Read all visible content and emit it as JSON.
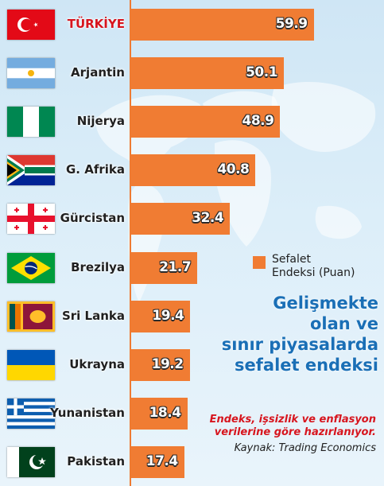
{
  "chart_data": {
    "type": "bar",
    "orientation": "horizontal",
    "title": "Gelişmekte olan ve sınır piyasalarda sefalet endeksi",
    "subtitle": "Endeks, işsizlik ve enflasyon verilerine göre hazırlanıyor.",
    "source": "Kaynak: Trading Economics",
    "legend": {
      "label": "Sefalet Endeksi (Puan)",
      "placement": "right-middle",
      "color": "#f07c33"
    },
    "highlight_category": "TÜRKİYE",
    "categories": [
      "TÜRKİYE",
      "Arjantin",
      "Nijerya",
      "G. Afrika",
      "Gürcistan",
      "Brezilya",
      "Sri Lanka",
      "Ukrayna",
      "Yunanistan",
      "Pakistan"
    ],
    "value_labels": [
      "59.9",
      "50.1",
      "48.9",
      "40.8",
      "32.4",
      "21.7",
      "19.4",
      "19.2",
      "18.4",
      "17.4"
    ],
    "values": [
      59.9,
      50.1,
      48.9,
      40.8,
      32.4,
      21.7,
      19.4,
      19.2,
      18.4,
      17.4
    ],
    "series": [
      {
        "values": [
          59.9,
          50.1,
          48.9,
          40.8,
          32.4,
          21.7,
          19.4,
          19.2,
          18.4,
          17.4
        ]
      }
    ],
    "flag_icons": [
      "turkey-flag-icon",
      "argentina-flag-icon",
      "nigeria-flag-icon",
      "south-africa-flag-icon",
      "georgia-flag-icon",
      "brazil-flag-icon",
      "sri-lanka-flag-icon",
      "ukraine-flag-icon",
      "greece-flag-icon",
      "pakistan-flag-icon"
    ],
    "xlim": [
      0,
      60
    ],
    "grid": false,
    "colors": {
      "bar": "#f07c33",
      "highlight_text": "#d7151e",
      "title": "#1a6fb6",
      "background": "#d6ebf7"
    }
  },
  "title_lines": [
    "Gelişmekte",
    "olan ve",
    "sınır piyasalarda",
    "sefalet endeksi"
  ],
  "legend_lines": [
    "Sefalet",
    "Endeksi (Puan)"
  ]
}
